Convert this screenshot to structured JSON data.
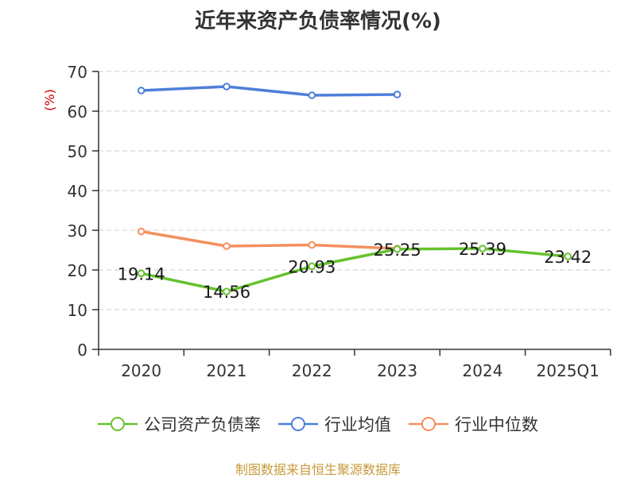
{
  "title": "近年来资产负债率情况(%)",
  "source": "制图数据来自恒生聚源数据库",
  "colors": {
    "company": "#66c22e",
    "industry_avg": "#4d7fd9",
    "industry_median": "#f4905e",
    "ylabel": "#cc0000",
    "source": "#c89a3a",
    "axis": "#333333",
    "grid": "#cccccc"
  },
  "chart_data": {
    "type": "line",
    "title": "近年来资产负债率情况(%)",
    "xlabel": "",
    "ylabel": "(%)",
    "categories": [
      "2020",
      "2021",
      "2022",
      "2023",
      "2024",
      "2025Q1"
    ],
    "ylim": [
      0,
      70
    ],
    "yticks": [
      0,
      10,
      20,
      30,
      40,
      50,
      60,
      70
    ],
    "grid": "horizontal dashed",
    "legend_position": "bottom",
    "series": [
      {
        "name": "公司资产负债率",
        "color": "#66c22e",
        "values": [
          19.14,
          14.56,
          20.93,
          25.25,
          25.39,
          23.42
        ],
        "labels": [
          "19.14",
          "14.56",
          "20.93",
          "25.25",
          "25.39",
          "23.42"
        ]
      },
      {
        "name": "行业均值",
        "color": "#4d7fd9",
        "values": [
          65.2,
          66.2,
          64.0,
          64.2,
          null,
          null
        ]
      },
      {
        "name": "行业中位数",
        "color": "#f4905e",
        "values": [
          29.7,
          26.0,
          26.3,
          25.4,
          null,
          null
        ]
      }
    ]
  }
}
